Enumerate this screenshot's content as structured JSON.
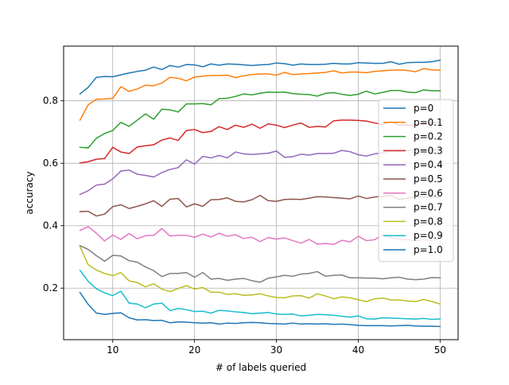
{
  "chart_data": {
    "type": "line",
    "title": "",
    "xlabel": "# of labels queried",
    "ylabel": "accuracy",
    "xlim": [
      4,
      52.2
    ],
    "ylim": [
      0.035,
      0.975
    ],
    "xticks": [
      10,
      20,
      30,
      40,
      50
    ],
    "yticks": [
      0.2,
      0.4,
      0.6,
      0.8
    ],
    "xtick_labels": [
      "10",
      "20",
      "30",
      "40",
      "50"
    ],
    "ytick_labels": [
      "0.2",
      "0.4",
      "0.6",
      "0.8"
    ],
    "grid": true,
    "legend_position": "center-right",
    "x": [
      6,
      7,
      8,
      9,
      10,
      11,
      12,
      13,
      14,
      15,
      16,
      17,
      18,
      19,
      20,
      21,
      22,
      23,
      24,
      25,
      26,
      27,
      28,
      29,
      30,
      31,
      32,
      33,
      34,
      35,
      36,
      37,
      38,
      39,
      40,
      41,
      42,
      43,
      44,
      45,
      46,
      47,
      48,
      49,
      50
    ],
    "series": [
      {
        "name": "p=0",
        "color": "#1f77b4",
        "values": [
          0.822,
          0.843,
          0.875,
          0.878,
          0.877,
          0.883,
          0.889,
          0.894,
          0.898,
          0.908,
          0.9,
          0.913,
          0.908,
          0.916,
          0.915,
          0.909,
          0.918,
          0.914,
          0.918,
          0.917,
          0.915,
          0.913,
          0.915,
          0.916,
          0.921,
          0.919,
          0.914,
          0.918,
          0.916,
          0.916,
          0.917,
          0.92,
          0.918,
          0.918,
          0.922,
          0.921,
          0.92,
          0.92,
          0.925,
          0.917,
          0.922,
          0.923,
          0.923,
          0.925,
          0.93
        ]
      },
      {
        "name": "p=0.1",
        "color": "#ff7f0e",
        "values": [
          0.738,
          0.787,
          0.805,
          0.806,
          0.808,
          0.845,
          0.83,
          0.838,
          0.85,
          0.848,
          0.857,
          0.875,
          0.872,
          0.864,
          0.876,
          0.879,
          0.881,
          0.881,
          0.882,
          0.874,
          0.88,
          0.884,
          0.886,
          0.886,
          0.882,
          0.891,
          0.884,
          0.886,
          0.887,
          0.889,
          0.891,
          0.896,
          0.889,
          0.892,
          0.892,
          0.89,
          0.894,
          0.896,
          0.898,
          0.899,
          0.897,
          0.893,
          0.903,
          0.899,
          0.898
        ]
      },
      {
        "name": "p=0.2",
        "color": "#2ca02c",
        "values": [
          0.651,
          0.649,
          0.68,
          0.695,
          0.705,
          0.731,
          0.718,
          0.738,
          0.758,
          0.741,
          0.773,
          0.771,
          0.764,
          0.79,
          0.79,
          0.791,
          0.787,
          0.807,
          0.808,
          0.814,
          0.822,
          0.819,
          0.824,
          0.828,
          0.827,
          0.828,
          0.823,
          0.821,
          0.82,
          0.815,
          0.824,
          0.826,
          0.821,
          0.817,
          0.821,
          0.831,
          0.822,
          0.827,
          0.833,
          0.833,
          0.828,
          0.826,
          0.835,
          0.832,
          0.832
        ]
      },
      {
        "name": "p=0.3",
        "color": "#d62728",
        "values": [
          0.601,
          0.605,
          0.613,
          0.615,
          0.651,
          0.636,
          0.631,
          0.652,
          0.656,
          0.659,
          0.674,
          0.681,
          0.673,
          0.705,
          0.708,
          0.698,
          0.702,
          0.717,
          0.708,
          0.722,
          0.715,
          0.725,
          0.712,
          0.726,
          0.722,
          0.714,
          0.722,
          0.729,
          0.715,
          0.718,
          0.716,
          0.736,
          0.738,
          0.738,
          0.737,
          0.735,
          0.729,
          0.724,
          0.733,
          0.722,
          0.722,
          0.722,
          0.729,
          0.73,
          0.73
        ]
      },
      {
        "name": "p=0.4",
        "color": "#9467bd",
        "values": [
          0.5,
          0.512,
          0.53,
          0.533,
          0.55,
          0.575,
          0.578,
          0.565,
          0.561,
          0.556,
          0.57,
          0.58,
          0.586,
          0.611,
          0.597,
          0.622,
          0.617,
          0.625,
          0.617,
          0.636,
          0.63,
          0.628,
          0.63,
          0.632,
          0.639,
          0.619,
          0.621,
          0.629,
          0.626,
          0.631,
          0.631,
          0.632,
          0.641,
          0.637,
          0.627,
          0.623,
          0.63,
          0.633,
          0.64,
          0.638,
          0.641,
          0.642,
          0.64,
          0.643,
          0.644
        ]
      },
      {
        "name": "p=0.5",
        "color": "#8c564b",
        "values": [
          0.445,
          0.446,
          0.431,
          0.437,
          0.461,
          0.467,
          0.455,
          0.462,
          0.47,
          0.48,
          0.462,
          0.485,
          0.487,
          0.46,
          0.47,
          0.462,
          0.483,
          0.484,
          0.489,
          0.478,
          0.476,
          0.483,
          0.497,
          0.48,
          0.478,
          0.484,
          0.485,
          0.484,
          0.488,
          0.493,
          0.492,
          0.49,
          0.488,
          0.486,
          0.495,
          0.487,
          0.492,
          0.494,
          0.497,
          0.484,
          0.488,
          0.491,
          0.493,
          0.492,
          0.49
        ]
      },
      {
        "name": "p=0.6",
        "color": "#e377c2",
        "values": [
          0.385,
          0.397,
          0.376,
          0.351,
          0.37,
          0.356,
          0.375,
          0.358,
          0.368,
          0.369,
          0.391,
          0.367,
          0.369,
          0.369,
          0.363,
          0.373,
          0.364,
          0.376,
          0.366,
          0.371,
          0.359,
          0.363,
          0.349,
          0.362,
          0.357,
          0.361,
          0.352,
          0.344,
          0.356,
          0.341,
          0.343,
          0.34,
          0.353,
          0.348,
          0.366,
          0.352,
          0.355,
          0.371,
          0.361,
          0.356,
          0.355,
          0.352,
          0.355,
          0.353,
          0.358
        ]
      },
      {
        "name": "p=0.7",
        "color": "#7f7f7f",
        "values": [
          0.336,
          0.324,
          0.304,
          0.286,
          0.305,
          0.303,
          0.288,
          0.283,
          0.268,
          0.256,
          0.237,
          0.247,
          0.247,
          0.25,
          0.235,
          0.25,
          0.229,
          0.231,
          0.225,
          0.229,
          0.231,
          0.224,
          0.219,
          0.232,
          0.236,
          0.241,
          0.238,
          0.245,
          0.247,
          0.253,
          0.238,
          0.241,
          0.242,
          0.233,
          0.233,
          0.232,
          0.232,
          0.23,
          0.233,
          0.235,
          0.229,
          0.227,
          0.229,
          0.234,
          0.233
        ]
      },
      {
        "name": "p=0.8",
        "color": "#bcbd22",
        "values": [
          0.333,
          0.275,
          0.258,
          0.247,
          0.24,
          0.25,
          0.223,
          0.218,
          0.204,
          0.214,
          0.197,
          0.189,
          0.199,
          0.208,
          0.197,
          0.202,
          0.187,
          0.187,
          0.18,
          0.182,
          0.177,
          0.178,
          0.182,
          0.175,
          0.17,
          0.169,
          0.175,
          0.176,
          0.168,
          0.182,
          0.175,
          0.166,
          0.172,
          0.169,
          0.163,
          0.157,
          0.166,
          0.168,
          0.162,
          0.162,
          0.159,
          0.157,
          0.164,
          0.157,
          0.149
        ]
      },
      {
        "name": "p=0.9",
        "color": "#17becf",
        "values": [
          0.257,
          0.222,
          0.198,
          0.185,
          0.176,
          0.19,
          0.152,
          0.149,
          0.137,
          0.149,
          0.152,
          0.128,
          0.135,
          0.131,
          0.125,
          0.126,
          0.12,
          0.129,
          0.127,
          0.124,
          0.122,
          0.118,
          0.12,
          0.122,
          0.117,
          0.116,
          0.117,
          0.111,
          0.113,
          0.116,
          0.115,
          0.113,
          0.11,
          0.107,
          0.111,
          0.102,
          0.101,
          0.105,
          0.104,
          0.103,
          0.102,
          0.101,
          0.103,
          0.1,
          0.101
        ]
      },
      {
        "name": "p=1.0",
        "color": "#1f77b4",
        "values": [
          0.186,
          0.148,
          0.12,
          0.116,
          0.119,
          0.121,
          0.105,
          0.098,
          0.099,
          0.096,
          0.097,
          0.089,
          0.092,
          0.091,
          0.089,
          0.088,
          0.089,
          0.085,
          0.088,
          0.087,
          0.089,
          0.09,
          0.089,
          0.087,
          0.086,
          0.085,
          0.088,
          0.085,
          0.086,
          0.085,
          0.086,
          0.084,
          0.085,
          0.083,
          0.081,
          0.08,
          0.08,
          0.08,
          0.079,
          0.08,
          0.081,
          0.079,
          0.078,
          0.078,
          0.077
        ]
      }
    ]
  }
}
